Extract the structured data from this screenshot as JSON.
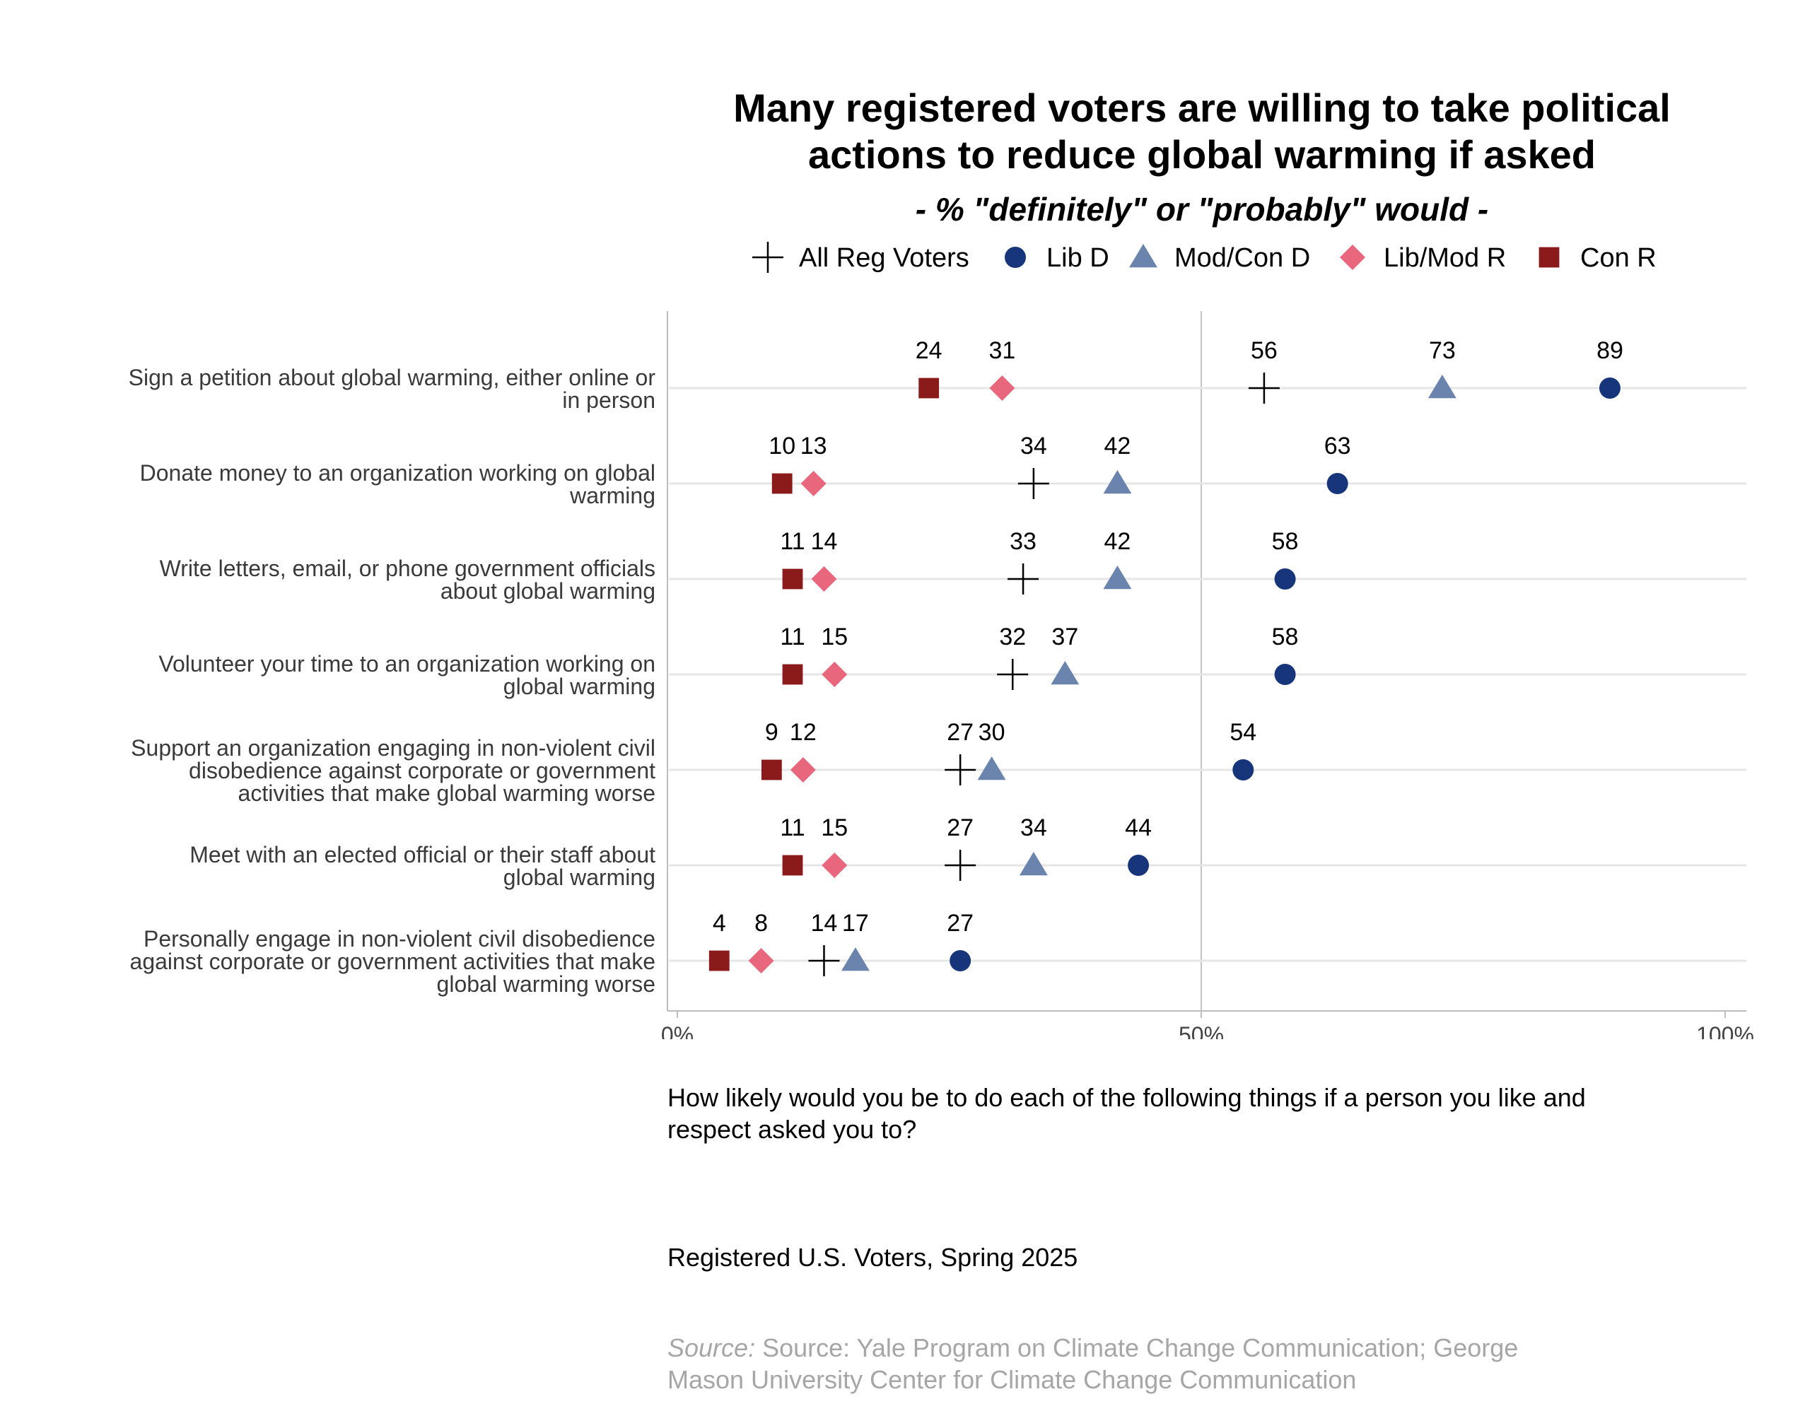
{
  "chart_data": {
    "type": "scatter",
    "title_lines": [
      "Many registered voters are willing to take political",
      "actions to reduce global warming if asked"
    ],
    "subtitle": "- % \"definitely\" or \"probably\" would -",
    "xlim": [
      0,
      100
    ],
    "x_ticks": [
      {
        "value": 0,
        "label": "0%"
      },
      {
        "value": 50,
        "label": "50%"
      },
      {
        "value": 100,
        "label": "100%"
      }
    ],
    "grid": "horizontal lines per item, vertical reference line at 50%",
    "legend_position": "top",
    "series": [
      {
        "name": "All Reg Voters",
        "marker": "plus",
        "color": "#000000"
      },
      {
        "name": "Lib D",
        "marker": "circle",
        "color": "#16357a"
      },
      {
        "name": "Mod/Con D",
        "marker": "triangle",
        "color": "#6a84ad"
      },
      {
        "name": "Lib/Mod R",
        "marker": "diamond",
        "color": "#e8677d"
      },
      {
        "name": "Con R",
        "marker": "square",
        "color": "#8b1a1a"
      }
    ],
    "items": [
      {
        "label_lines": [
          "Sign a petition about global warming, either online or",
          "in person"
        ],
        "values": {
          "All Reg Voters": 56,
          "Lib D": 89,
          "Mod/Con D": 73,
          "Lib/Mod R": 31,
          "Con R": 24
        }
      },
      {
        "label_lines": [
          "Donate money to an organization working on global",
          "warming"
        ],
        "values": {
          "All Reg Voters": 34,
          "Lib D": 63,
          "Mod/Con D": 42,
          "Lib/Mod R": 13,
          "Con R": 10
        }
      },
      {
        "label_lines": [
          "Write letters, email, or phone government officials",
          "about global warming"
        ],
        "values": {
          "All Reg Voters": 33,
          "Lib D": 58,
          "Mod/Con D": 42,
          "Lib/Mod R": 14,
          "Con R": 11
        }
      },
      {
        "label_lines": [
          "Volunteer your time to an organization working on",
          "global warming"
        ],
        "values": {
          "All Reg Voters": 32,
          "Lib D": 58,
          "Mod/Con D": 37,
          "Lib/Mod R": 15,
          "Con R": 11
        }
      },
      {
        "label_lines": [
          "Support an organization engaging in non-violent civil",
          "disobedience against corporate or government",
          "activities that make global warming worse"
        ],
        "values": {
          "All Reg Voters": 27,
          "Lib D": 54,
          "Mod/Con D": 30,
          "Lib/Mod R": 12,
          "Con R": 9
        }
      },
      {
        "label_lines": [
          "Meet with an elected official or their staff about",
          "global warming"
        ],
        "values": {
          "All Reg Voters": 27,
          "Lib D": 44,
          "Mod/Con D": 34,
          "Lib/Mod R": 15,
          "Con R": 11
        }
      },
      {
        "label_lines": [
          "Personally engage in non-violent civil disobedience",
          "against corporate or government activities that make",
          "global warming worse"
        ],
        "values": {
          "All Reg Voters": 14,
          "Lib D": 27,
          "Mod/Con D": 17,
          "Lib/Mod R": 8,
          "Con R": 4
        }
      }
    ]
  },
  "notes": {
    "question": "How likely would you be to do each of the following things if a person you like and respect asked you to?",
    "population": "Registered U.S. Voters, Spring 2025",
    "source_prefix": "Source:",
    "source_text": "Source: Yale Program on Climate Change Communication; George Mason University Center for Climate Change Communication"
  }
}
